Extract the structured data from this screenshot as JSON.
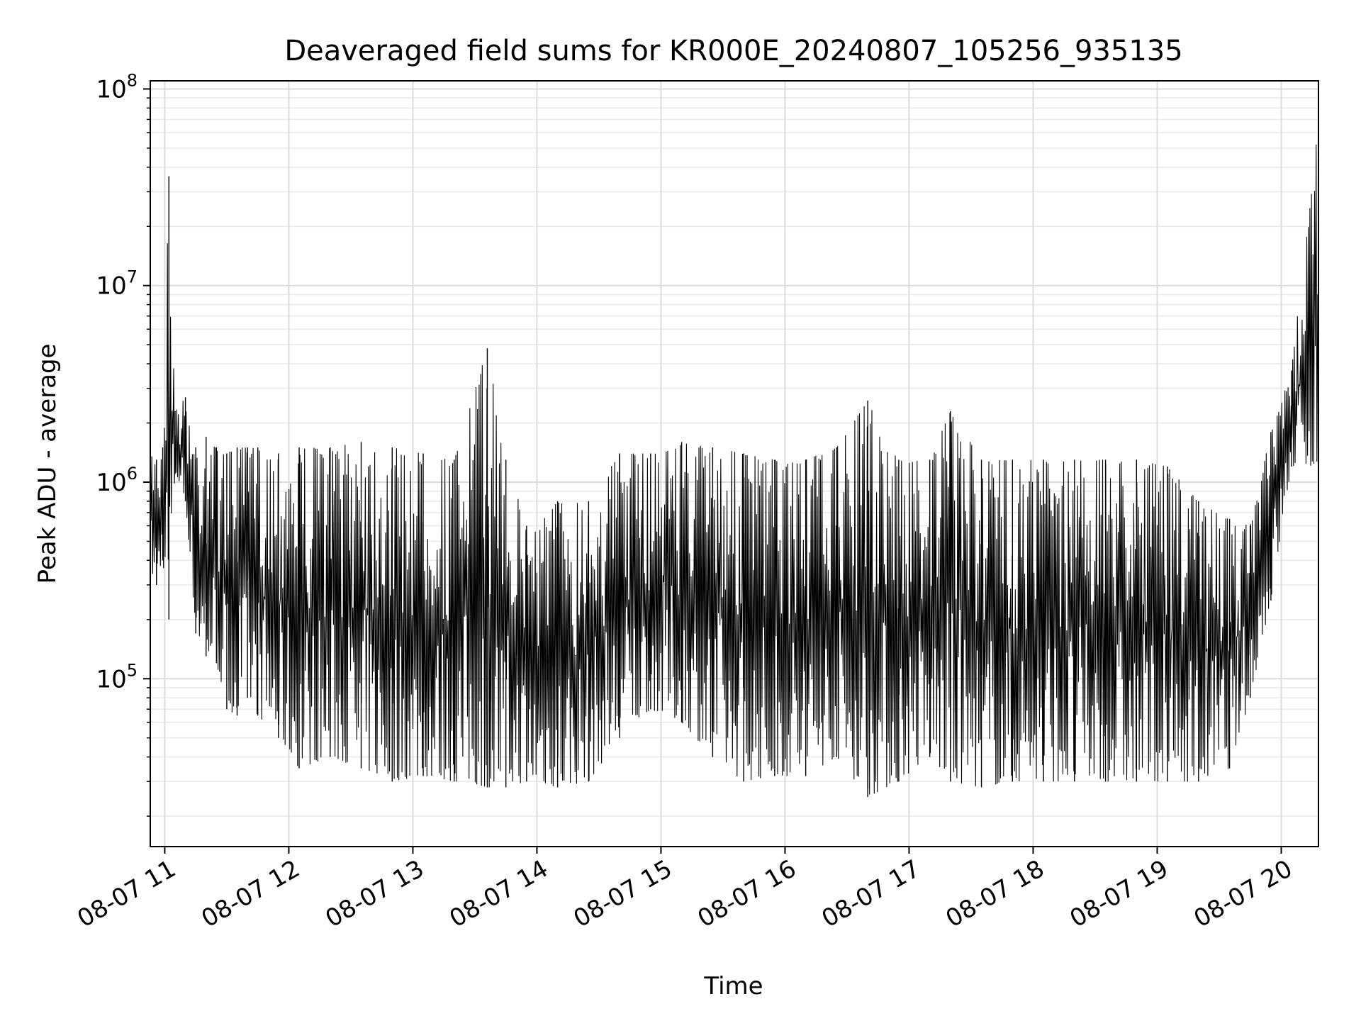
{
  "chart_data": {
    "type": "line",
    "title": "Deaveraged field sums for KR000E_20240807_105256_935135",
    "xlabel": "Time",
    "ylabel": "Peak ADU - average",
    "x_range": [
      "2024-08-07 10:53",
      "2024-08-07 20:18"
    ],
    "y_scale": "log",
    "ylim": [
      14000,
      110000000
    ],
    "grid": "major and minor",
    "line_color": "#000000",
    "x_ticks": [
      "08-07 11",
      "08-07 12",
      "08-07 13",
      "08-07 14",
      "08-07 15",
      "08-07 16",
      "08-07 17",
      "08-07 18",
      "08-07 19",
      "08-07 20"
    ],
    "x_tick_times": [
      "2024-08-07 11:00",
      "2024-08-07 12:00",
      "2024-08-07 13:00",
      "2024-08-07 14:00",
      "2024-08-07 15:00",
      "2024-08-07 16:00",
      "2024-08-07 17:00",
      "2024-08-07 18:00",
      "2024-08-07 19:00",
      "2024-08-07 20:00"
    ],
    "y_ticks": [
      {
        "value": 100000,
        "base": "10",
        "exp": "5"
      },
      {
        "value": 1000000,
        "base": "10",
        "exp": "6"
      },
      {
        "value": 10000000,
        "base": "10",
        "exp": "7"
      },
      {
        "value": 100000000,
        "base": "10",
        "exp": "8"
      }
    ],
    "series": [
      {
        "x": [
          "2024-08-07 10:53",
          "2024-08-07 10:56",
          "2024-08-07 10:59",
          "2024-08-07 11:02",
          "2024-08-07 11:05",
          "2024-08-07 11:10",
          "2024-08-07 11:15",
          "2024-08-07 11:20",
          "2024-08-07 11:25",
          "2024-08-07 11:30",
          "2024-08-07 11:35",
          "2024-08-07 11:40",
          "2024-08-07 11:45",
          "2024-08-07 11:55",
          "2024-08-07 12:05",
          "2024-08-07 12:20",
          "2024-08-07 12:35",
          "2024-08-07 12:50",
          "2024-08-07 13:05",
          "2024-08-07 13:20",
          "2024-08-07 13:36",
          "2024-08-07 13:45",
          "2024-08-07 13:55",
          "2024-08-07 14:10",
          "2024-08-07 14:25",
          "2024-08-07 14:40",
          "2024-08-07 14:55",
          "2024-08-07 15:10",
          "2024-08-07 15:25",
          "2024-08-07 15:40",
          "2024-08-07 15:55",
          "2024-08-07 16:10",
          "2024-08-07 16:25",
          "2024-08-07 16:40",
          "2024-08-07 16:55",
          "2024-08-07 17:10",
          "2024-08-07 17:20",
          "2024-08-07 17:35",
          "2024-08-07 17:50",
          "2024-08-07 18:05",
          "2024-08-07 18:20",
          "2024-08-07 18:35",
          "2024-08-07 18:50",
          "2024-08-07 19:05",
          "2024-08-07 19:20",
          "2024-08-07 19:35",
          "2024-08-07 19:45",
          "2024-08-07 19:55",
          "2024-08-07 20:05",
          "2024-08-07 20:18"
        ],
        "upper": [
          1500000,
          1300000,
          1500000,
          36000000,
          2300000,
          2700000,
          1500000,
          1700000,
          1500000,
          1400000,
          1500000,
          1500000,
          1500000,
          1400000,
          1500000,
          1500000,
          1600000,
          1500000,
          1400000,
          1300000,
          4800000,
          1300000,
          600000,
          800000,
          800000,
          1400000,
          1400000,
          1600000,
          1500000,
          1400000,
          1300000,
          1300000,
          1500000,
          2600000,
          1300000,
          1300000,
          2300000,
          1300000,
          1300000,
          1300000,
          1300000,
          1300000,
          1300000,
          1200000,
          800000,
          650000,
          600000,
          1800000,
          3700000,
          75000000
        ],
        "lower": [
          350000,
          300000,
          400000,
          200000,
          1100000,
          800000,
          170000,
          130000,
          120000,
          70000,
          65000,
          80000,
          65000,
          50000,
          35000,
          40000,
          35000,
          30000,
          32000,
          30000,
          28000,
          28000,
          30000,
          28000,
          30000,
          50000,
          70000,
          60000,
          40000,
          30000,
          32000,
          32000,
          40000,
          25000,
          30000,
          40000,
          30000,
          28000,
          30000,
          30000,
          30000,
          30000,
          30000,
          30000,
          30000,
          35000,
          80000,
          250000,
          1200000,
          1200000
        ]
      }
    ]
  }
}
